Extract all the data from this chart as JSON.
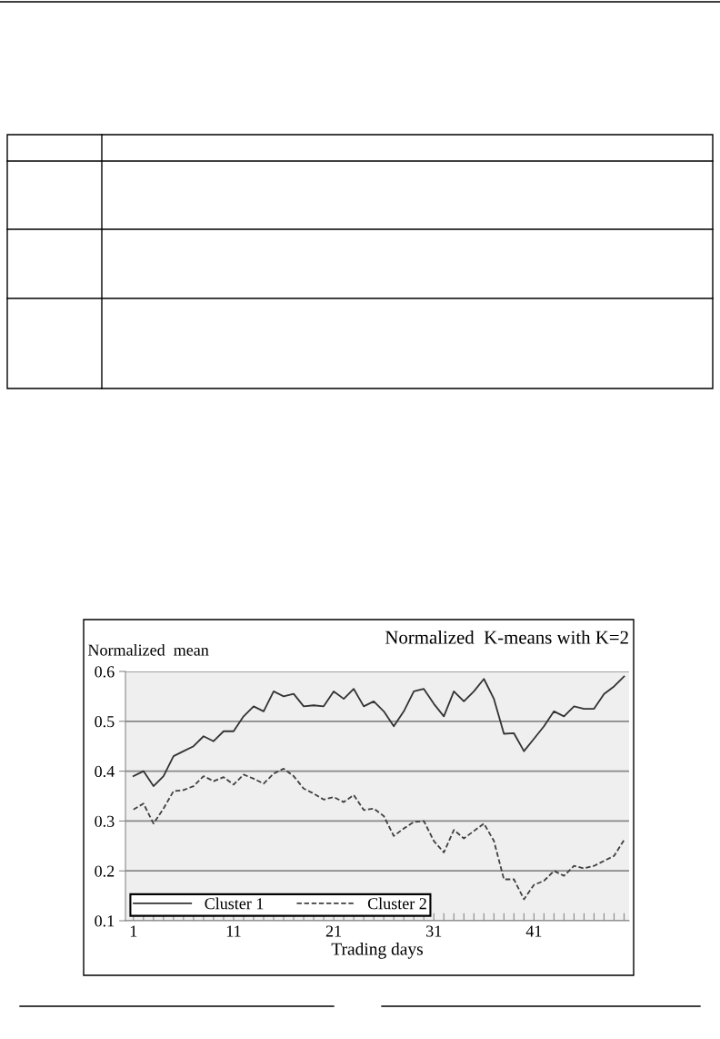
{
  "chart_data": {
    "type": "line",
    "title": "Normalized  K-means with K=2",
    "xlabel": "Trading days",
    "ylabel": "Normalized  mean",
    "x": [
      1,
      2,
      3,
      4,
      5,
      6,
      7,
      8,
      9,
      10,
      11,
      12,
      13,
      14,
      15,
      16,
      17,
      18,
      19,
      20,
      21,
      22,
      23,
      24,
      25,
      26,
      27,
      28,
      29,
      30,
      31,
      32,
      33,
      34,
      35,
      36,
      37,
      38,
      39,
      40,
      41,
      42,
      43,
      44,
      45,
      46,
      47,
      48,
      49,
      50
    ],
    "series": [
      {
        "name": "Cluster 1",
        "color": "#333333",
        "line_style": "solid",
        "values": [
          0.39,
          0.4,
          0.37,
          0.39,
          0.43,
          0.44,
          0.45,
          0.47,
          0.46,
          0.48,
          0.48,
          0.51,
          0.53,
          0.52,
          0.56,
          0.55,
          0.555,
          0.53,
          0.532,
          0.53,
          0.56,
          0.545,
          0.565,
          0.53,
          0.54,
          0.52,
          0.49,
          0.52,
          0.56,
          0.565,
          0.535,
          0.51,
          0.56,
          0.54,
          0.56,
          0.585,
          0.545,
          0.475,
          0.476,
          0.44,
          0.465,
          0.49,
          0.52,
          0.51,
          0.53,
          0.525,
          0.525,
          0.555,
          0.57,
          0.59
        ]
      },
      {
        "name": "Cluster 2",
        "color": "#404040",
        "line_style": "dashed",
        "values": [
          0.323,
          0.335,
          0.295,
          0.325,
          0.36,
          0.362,
          0.37,
          0.39,
          0.38,
          0.388,
          0.373,
          0.393,
          0.385,
          0.375,
          0.395,
          0.405,
          0.39,
          0.365,
          0.355,
          0.343,
          0.348,
          0.338,
          0.352,
          0.322,
          0.325,
          0.31,
          0.27,
          0.285,
          0.298,
          0.3,
          0.26,
          0.237,
          0.282,
          0.265,
          0.28,
          0.295,
          0.26,
          0.183,
          0.183,
          0.143,
          0.172,
          0.18,
          0.2,
          0.19,
          0.21,
          0.205,
          0.21,
          0.22,
          0.23,
          0.262
        ]
      }
    ],
    "xlim": [
      0.2,
      50.5
    ],
    "xticks": [
      1,
      {
        "value": 2,
        "label": null
      },
      {
        "value": 3,
        "label": null
      },
      {
        "value": 4,
        "label": null
      },
      {
        "value": 5,
        "label": null
      },
      {
        "value": 6,
        "label": null
      },
      {
        "value": 7,
        "label": null
      },
      {
        "value": 8,
        "label": null
      },
      {
        "value": 9,
        "label": null
      },
      {
        "value": 10,
        "label": null
      },
      11,
      {
        "value": 12,
        "label": null
      },
      {
        "value": 13,
        "label": null
      },
      {
        "value": 14,
        "label": null
      },
      {
        "value": 15,
        "label": null
      },
      {
        "value": 16,
        "label": null
      },
      {
        "value": 17,
        "label": null
      },
      {
        "value": 18,
        "label": null
      },
      {
        "value": 19,
        "label": null
      },
      {
        "value": 20,
        "label": null
      },
      21,
      {
        "value": 22,
        "label": null
      },
      {
        "value": 23,
        "label": null
      },
      {
        "value": 24,
        "label": null
      },
      {
        "value": 25,
        "label": null
      },
      {
        "value": 26,
        "label": null
      },
      {
        "value": 27,
        "label": null
      },
      {
        "value": 28,
        "label": null
      },
      {
        "value": 29,
        "label": null
      },
      {
        "value": 30,
        "label": null
      },
      31,
      {
        "value": 32,
        "label": null
      },
      {
        "value": 33,
        "label": null
      },
      {
        "value": 34,
        "label": null
      },
      {
        "value": 35,
        "label": null
      },
      {
        "value": 36,
        "label": null
      },
      {
        "value": 37,
        "label": null
      },
      {
        "value": 38,
        "label": null
      },
      {
        "value": 39,
        "label": null
      },
      {
        "value": 40,
        "label": null
      },
      41,
      {
        "value": 42,
        "label": null
      },
      {
        "value": 43,
        "label": null
      },
      {
        "value": 44,
        "label": null
      },
      {
        "value": 45,
        "label": null
      },
      {
        "value": 46,
        "label": null
      },
      {
        "value": 47,
        "label": null
      },
      {
        "value": 48,
        "label": null
      },
      {
        "value": 49,
        "label": null
      },
      {
        "value": 50,
        "label": null
      }
    ],
    "ylim": [
      0.1,
      0.6
    ],
    "yticks": [
      0.1,
      0.2,
      0.3,
      0.4,
      0.5,
      0.6
    ],
    "grid": "y",
    "legend": "bottom left",
    "marker": "none"
  }
}
